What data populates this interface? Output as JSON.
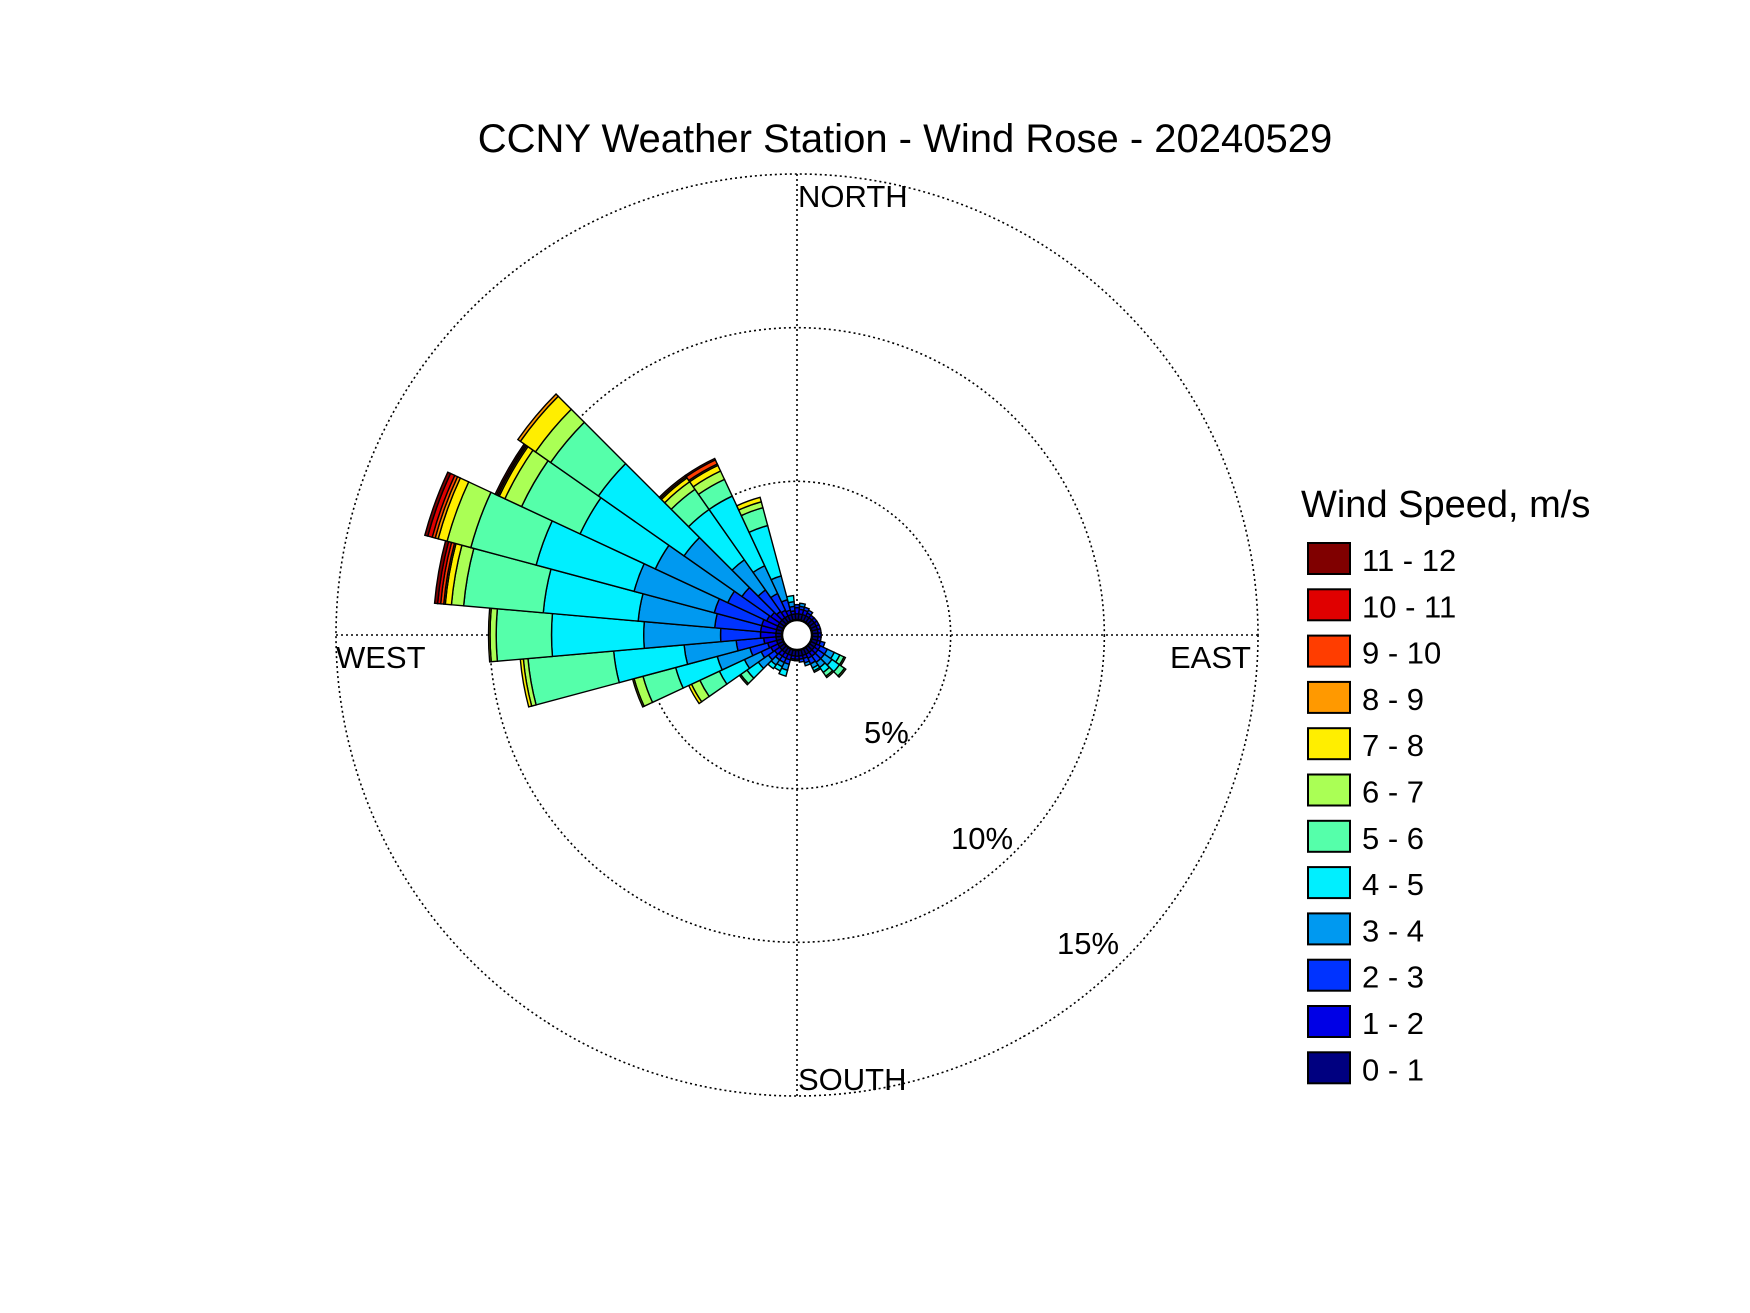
{
  "chart_data": {
    "type": "wind-rose",
    "title": "CCNY Weather Station - Wind Rose - 20240529",
    "directions": {
      "north": "NORTH",
      "south": "SOUTH",
      "east": "EAST",
      "west": "WEST"
    },
    "ring_labels": [
      "5%",
      "10%",
      "15%"
    ],
    "rings": [
      5,
      10,
      15
    ],
    "rmax": 15,
    "legend": {
      "title": "Wind Speed, m/s",
      "bins": [
        "0 - 1",
        "1 - 2",
        "2 - 3",
        "3 - 4",
        "4 - 5",
        "5 - 6",
        "6 - 7",
        "7 - 8",
        "8 - 9",
        "9 - 10",
        "10 - 11",
        "11 - 12"
      ],
      "colors": [
        "#000080",
        "#0000e6",
        "#0033ff",
        "#0099f0",
        "#00efff",
        "#55ffaa",
        "#aaff55",
        "#ffee00",
        "#ff9900",
        "#ff3d00",
        "#e00000",
        "#800000"
      ]
    },
    "sector_width_deg": 10,
    "series_unit": "cumulative frequency (%) at upper edge of each speed bin",
    "sectors": [
      {
        "dir": 0,
        "cum": [
          0.2,
          0.4,
          0.5
        ]
      },
      {
        "dir": 10,
        "cum": [
          0.2,
          0.35,
          0.45,
          0.55
        ]
      },
      {
        "dir": 20,
        "cum": [
          0.2,
          0.35,
          0.45
        ]
      },
      {
        "dir": 30,
        "cum": [
          0.2,
          0.3,
          0.4
        ]
      },
      {
        "dir": 40,
        "cum": [
          0.2,
          0.3
        ]
      },
      {
        "dir": 50,
        "cum": [
          0.2,
          0.3
        ]
      },
      {
        "dir": 60,
        "cum": [
          0.2,
          0.3
        ]
      },
      {
        "dir": 70,
        "cum": [
          0.2,
          0.3
        ]
      },
      {
        "dir": 80,
        "cum": [
          0.2,
          0.3
        ]
      },
      {
        "dir": 90,
        "cum": [
          0.2,
          0.3
        ]
      },
      {
        "dir": 100,
        "cum": [
          0.2,
          0.3
        ]
      },
      {
        "dir": 110,
        "cum": [
          0.2,
          0.3,
          0.45
        ]
      },
      {
        "dir": 120,
        "cum": [
          0.2,
          0.35,
          0.6,
          0.85,
          1.05,
          1.2,
          1.25
        ]
      },
      {
        "dir": 130,
        "cum": [
          0.2,
          0.35,
          0.6,
          0.9,
          1.2,
          1.4,
          1.45
        ]
      },
      {
        "dir": 140,
        "cum": [
          0.2,
          0.35,
          0.6,
          0.8,
          1.0,
          1.15,
          1.2
        ]
      },
      {
        "dir": 150,
        "cum": [
          0.2,
          0.35,
          0.55,
          0.7,
          0.8,
          0.85
        ]
      },
      {
        "dir": 160,
        "cum": [
          0.2,
          0.3,
          0.45,
          0.55
        ]
      },
      {
        "dir": 170,
        "cum": [
          0.2,
          0.3,
          0.4
        ]
      },
      {
        "dir": 180,
        "cum": [
          0.2,
          0.3,
          0.35
        ]
      },
      {
        "dir": 190,
        "cum": [
          0.2,
          0.3,
          0.35
        ]
      },
      {
        "dir": 200,
        "cum": [
          0.2,
          0.35,
          0.5,
          0.7,
          0.9
        ]
      },
      {
        "dir": 210,
        "cum": [
          0.2,
          0.35,
          0.5,
          0.65,
          0.8
        ]
      },
      {
        "dir": 220,
        "cum": [
          0.2,
          0.35,
          0.5,
          0.7,
          0.85
        ]
      },
      {
        "dir": 230,
        "cum": [
          0.2,
          0.4,
          0.65,
          1.05,
          1.5,
          1.75,
          1.8
        ]
      },
      {
        "dir": 240,
        "cum": [
          0.2,
          0.45,
          0.8,
          1.4,
          2.3,
          3.0,
          3.3,
          3.4
        ]
      },
      {
        "dir": 250,
        "cum": [
          0.2,
          0.5,
          1.1,
          2.2,
          3.6,
          4.7,
          5.0,
          5.05
        ]
      },
      {
        "dir": 260,
        "cum": [
          0.2,
          0.6,
          1.5,
          3.2,
          5.5,
          8.3,
          8.45,
          8.55
        ]
      },
      {
        "dir": 270,
        "cum": [
          0.2,
          0.7,
          2.0,
          4.5,
          7.5,
          9.3,
          9.5,
          9.55
        ]
      },
      {
        "dir": 280,
        "cum": [
          0.2,
          0.7,
          2.2,
          4.7,
          7.8,
          10.4,
          10.8,
          11.0,
          11.05,
          11.15,
          11.25,
          11.35
        ]
      },
      {
        "dir": 290,
        "cum": [
          0.2,
          0.7,
          2.3,
          5.0,
          8.3,
          10.5,
          11.3,
          11.6,
          11.7,
          11.8,
          11.95,
          12.05
        ]
      },
      {
        "dir": 300,
        "cum": [
          0.2,
          0.6,
          2.0,
          4.6,
          7.3,
          9.4,
          10.0,
          10.2,
          10.25,
          10.3,
          10.35
        ]
      },
      {
        "dir": 310,
        "cum": [
          0.2,
          0.55,
          1.7,
          4.0,
          7.4,
          9.3,
          9.9,
          10.5,
          10.6
        ]
      },
      {
        "dir": 320,
        "cum": [
          0.2,
          0.45,
          1.3,
          2.5,
          4.5,
          5.3,
          5.6,
          5.75,
          5.8,
          5.85
        ]
      },
      {
        "dir": 330,
        "cum": [
          0.2,
          0.4,
          1.0,
          2.0,
          4.5,
          5.1,
          5.4,
          5.6,
          5.65,
          5.8,
          5.85
        ]
      },
      {
        "dir": 340,
        "cum": [
          0.2,
          0.35,
          0.7,
          1.5,
          3.2,
          3.8,
          4.0,
          4.15
        ]
      },
      {
        "dir": 350,
        "cum": [
          0.2,
          0.3,
          0.45,
          0.6,
          0.8
        ]
      }
    ]
  }
}
